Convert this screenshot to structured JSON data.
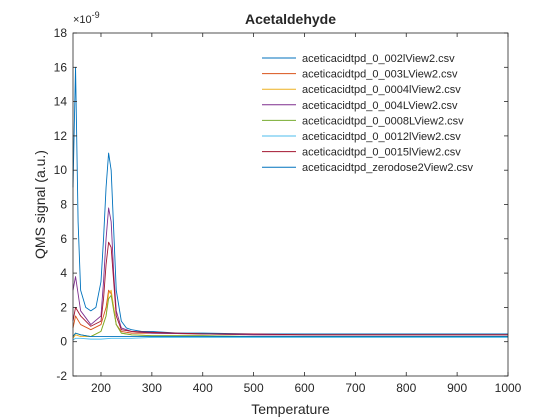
{
  "chart_data": {
    "type": "line",
    "title": "Acetaldehyde",
    "xlabel": "Temperature",
    "ylabel": "QMS signal (a.u.)",
    "y_exponent_label": "×10^{-9}",
    "y_multiplier": 1e-09,
    "xlim": [
      145,
      1000
    ],
    "ylim": [
      -2,
      18
    ],
    "x_ticks": [
      200,
      300,
      400,
      500,
      600,
      700,
      800,
      900,
      1000
    ],
    "y_ticks": [
      -2,
      0,
      2,
      4,
      6,
      8,
      10,
      12,
      14,
      16,
      18
    ],
    "grid": false,
    "legend_position": "top-right",
    "series": [
      {
        "name": "aceticacidtpd_0_002lView2.csv",
        "color": "#0072BD",
        "x": [
          145,
          150,
          155,
          160,
          170,
          180,
          190,
          200,
          205,
          210,
          215,
          220,
          225,
          230,
          240,
          250,
          260,
          280,
          300,
          350,
          400,
          500,
          600,
          700,
          800,
          900,
          1000
        ],
        "values": [
          9.0,
          16.0,
          7.0,
          3.0,
          2.0,
          1.8,
          2.0,
          3.5,
          6.0,
          9.0,
          11.0,
          10.0,
          6.5,
          3.0,
          1.2,
          0.8,
          0.7,
          0.6,
          0.6,
          0.5,
          0.5,
          0.45,
          0.45,
          0.45,
          0.45,
          0.45,
          0.45
        ]
      },
      {
        "name": "aceticacidtpd_0_003LView2.csv",
        "color": "#D95319",
        "x": [
          145,
          150,
          160,
          180,
          200,
          210,
          215,
          220,
          225,
          230,
          240,
          260,
          300,
          400,
          500,
          600,
          700,
          800,
          900,
          1000
        ],
        "values": [
          0.8,
          1.5,
          1.0,
          0.7,
          1.0,
          2.0,
          3.0,
          2.8,
          2.0,
          1.0,
          0.6,
          0.5,
          0.5,
          0.45,
          0.4,
          0.4,
          0.4,
          0.4,
          0.4,
          0.4
        ]
      },
      {
        "name": "aceticacidtpd_0_0004lView2.csv",
        "color": "#EDB120",
        "x": [
          145,
          150,
          160,
          180,
          200,
          210,
          215,
          220,
          225,
          230,
          240,
          260,
          300,
          400,
          500,
          600,
          700,
          800,
          900,
          1000
        ],
        "values": [
          0.2,
          0.4,
          0.3,
          0.3,
          0.6,
          1.5,
          2.8,
          3.0,
          2.0,
          1.0,
          0.5,
          0.4,
          0.35,
          0.35,
          0.3,
          0.3,
          0.3,
          0.3,
          0.3,
          0.3
        ]
      },
      {
        "name": "aceticacidtpd_0_004LView2.csv",
        "color": "#7E2F8E",
        "x": [
          145,
          150,
          160,
          180,
          200,
          205,
          210,
          215,
          220,
          225,
          230,
          240,
          260,
          300,
          400,
          500,
          600,
          700,
          800,
          900,
          1000
        ],
        "values": [
          3.0,
          3.8,
          1.8,
          1.0,
          1.5,
          3.5,
          6.0,
          7.8,
          7.0,
          4.0,
          1.8,
          0.8,
          0.6,
          0.5,
          0.45,
          0.4,
          0.4,
          0.4,
          0.4,
          0.4,
          0.4
        ]
      },
      {
        "name": "aceticacidtpd_0_0008LView2.csv",
        "color": "#77AC30",
        "x": [
          145,
          150,
          160,
          180,
          200,
          210,
          215,
          220,
          225,
          230,
          240,
          260,
          300,
          400,
          500,
          600,
          700,
          800,
          900,
          1000
        ],
        "values": [
          0.3,
          0.5,
          0.4,
          0.3,
          0.6,
          1.5,
          2.5,
          2.7,
          1.8,
          1.0,
          0.5,
          0.4,
          0.35,
          0.35,
          0.3,
          0.3,
          0.3,
          0.3,
          0.3,
          0.3
        ]
      },
      {
        "name": "aceticacidtpd_0_0012lView2.csv",
        "color": "#4DBEEE",
        "x": [
          145,
          150,
          160,
          180,
          200,
          220,
          240,
          260,
          300,
          400,
          500,
          600,
          700,
          800,
          900,
          1000
        ],
        "values": [
          0.1,
          0.2,
          0.2,
          0.15,
          0.15,
          0.2,
          0.2,
          0.2,
          0.25,
          0.25,
          0.25,
          0.25,
          0.25,
          0.25,
          0.25,
          0.25
        ]
      },
      {
        "name": "aceticacidtpd_0_0015lView2.csv",
        "color": "#A2142F",
        "x": [
          145,
          150,
          160,
          180,
          200,
          205,
          210,
          215,
          220,
          225,
          230,
          240,
          260,
          300,
          400,
          500,
          600,
          700,
          800,
          900,
          1000
        ],
        "values": [
          1.2,
          2.0,
          1.5,
          0.9,
          1.2,
          2.5,
          4.5,
          5.8,
          5.5,
          3.5,
          1.5,
          0.7,
          0.6,
          0.55,
          0.45,
          0.45,
          0.4,
          0.4,
          0.4,
          0.4,
          0.4
        ]
      },
      {
        "name": "aceticacidtpd_zerodose2View2.csv",
        "color": "#0072BD",
        "x": [
          145,
          150,
          160,
          180,
          200,
          220,
          240,
          260,
          300,
          400,
          500,
          600,
          700,
          800,
          900,
          1000
        ],
        "values": [
          0.3,
          0.5,
          0.4,
          0.3,
          0.3,
          0.3,
          0.3,
          0.3,
          0.3,
          0.3,
          0.3,
          0.3,
          0.3,
          0.3,
          0.3,
          0.3
        ]
      }
    ]
  }
}
